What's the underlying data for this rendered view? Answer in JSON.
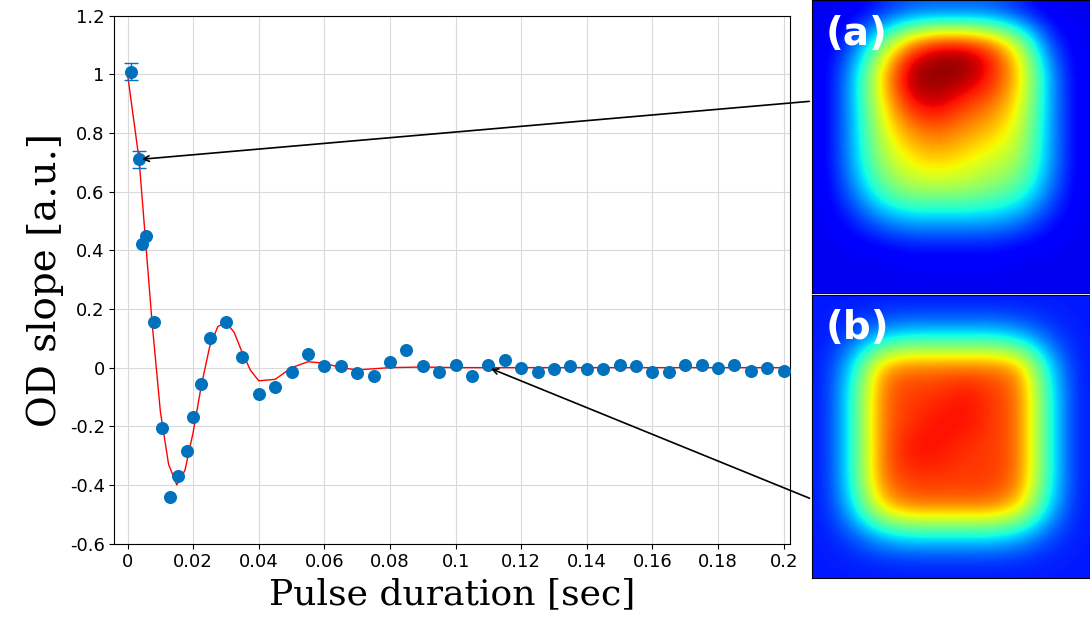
{
  "chart_data": {
    "type": "scatter",
    "x_label": "Pulse duration [sec]",
    "y_label": "OD slope [a.u.]",
    "xlim": [
      -0.004,
      0.202
    ],
    "ylim": [
      -0.6,
      1.2
    ],
    "xticks": [
      0,
      0.02,
      0.04,
      0.06,
      0.08,
      0.1,
      0.12,
      0.14,
      0.16,
      0.18,
      0.2
    ],
    "yticks": [
      -0.6,
      -0.4,
      -0.2,
      0,
      0.2,
      0.4,
      0.6,
      0.8,
      1,
      1.2
    ],
    "grid": true,
    "series": [
      {
        "type": "scatter",
        "color": "#0072bd",
        "marker": "o",
        "x": [
          0.001,
          0.0035,
          0.0045,
          0.0055,
          0.008,
          0.0105,
          0.013,
          0.0155,
          0.018,
          0.02,
          0.0225,
          0.025,
          0.03,
          0.035,
          0.04,
          0.045,
          0.05,
          0.055,
          0.06,
          0.065,
          0.07,
          0.075,
          0.08,
          0.085,
          0.09,
          0.095,
          0.1,
          0.105,
          0.11,
          0.115,
          0.12,
          0.125,
          0.13,
          0.135,
          0.14,
          0.145,
          0.15,
          0.155,
          0.16,
          0.165,
          0.17,
          0.175,
          0.18,
          0.185,
          0.19,
          0.195,
          0.2
        ],
        "values": [
          1.01,
          0.71,
          0.42,
          0.45,
          0.155,
          -0.205,
          -0.44,
          -0.37,
          -0.285,
          -0.17,
          -0.055,
          0.1,
          0.155,
          0.035,
          -0.09,
          -0.065,
          -0.015,
          0.045,
          0.005,
          0.005,
          -0.02,
          -0.03,
          0.02,
          0.06,
          0.005,
          -0.015,
          0.01,
          -0.03,
          0.01,
          0.025,
          0.0,
          -0.015,
          -0.005,
          0.005,
          -0.005,
          -0.005,
          0.01,
          0.005,
          -0.015,
          -0.015,
          0.01,
          0.01,
          0.0,
          0.01,
          -0.01,
          0.0,
          -0.01
        ],
        "errors": [
          0.03,
          0.03,
          null,
          null,
          null,
          null,
          null,
          null,
          null,
          null,
          null,
          null,
          null,
          null,
          null,
          null,
          null,
          null,
          null,
          null,
          null,
          null,
          null,
          null,
          null,
          null,
          null,
          null,
          null,
          null,
          null,
          null,
          null,
          null,
          null,
          null,
          null,
          null,
          null,
          null,
          null,
          null,
          null,
          null,
          null,
          null,
          null
        ]
      },
      {
        "type": "line",
        "color": "#ff0000",
        "line_style": "solid",
        "x": [
          0,
          0.0035,
          0.005,
          0.0075,
          0.01,
          0.0125,
          0.015,
          0.0175,
          0.02,
          0.0225,
          0.025,
          0.0275,
          0.03,
          0.0325,
          0.035,
          0.0375,
          0.04,
          0.045,
          0.05,
          0.055,
          0.06,
          0.065,
          0.07,
          0.08,
          0.09,
          0.1,
          0.2
        ],
        "values": [
          1.0,
          0.71,
          0.5,
          0.15,
          -0.15,
          -0.33,
          -0.4,
          -0.35,
          -0.22,
          -0.06,
          0.07,
          0.14,
          0.155,
          0.12,
          0.05,
          -0.01,
          -0.045,
          -0.04,
          0.0,
          0.02,
          0.015,
          0.0,
          -0.008,
          0.0,
          0.002,
          0.0,
          0.0
        ]
      }
    ],
    "insets": [
      {
        "label": "(a)",
        "points_to": [
          0.0035,
          0.71
        ],
        "range": [
          0,
          1
        ],
        "cells": [
          [
            0.1,
            0.1,
            0.15,
            0.2,
            0.2,
            0.2,
            0.2,
            0.15,
            0.1,
            0.1
          ],
          [
            0.1,
            0.2,
            0.5,
            0.8,
            0.95,
            0.95,
            0.85,
            0.6,
            0.2,
            0.1
          ],
          [
            0.1,
            0.3,
            0.7,
            1.0,
            1.0,
            1.0,
            0.9,
            0.7,
            0.3,
            0.1
          ],
          [
            0.1,
            0.3,
            0.65,
            0.9,
            0.95,
            0.85,
            0.8,
            0.65,
            0.3,
            0.1
          ],
          [
            0.1,
            0.3,
            0.6,
            0.75,
            0.8,
            0.75,
            0.7,
            0.6,
            0.3,
            0.1
          ],
          [
            0.1,
            0.3,
            0.55,
            0.65,
            0.7,
            0.65,
            0.6,
            0.55,
            0.3,
            0.1
          ],
          [
            0.1,
            0.25,
            0.45,
            0.55,
            0.55,
            0.55,
            0.5,
            0.45,
            0.25,
            0.1
          ],
          [
            0.1,
            0.15,
            0.25,
            0.3,
            0.3,
            0.3,
            0.3,
            0.25,
            0.15,
            0.1
          ],
          [
            0.1,
            0.1,
            0.1,
            0.12,
            0.12,
            0.12,
            0.12,
            0.1,
            0.1,
            0.1
          ],
          [
            0.1,
            0.1,
            0.1,
            0.1,
            0.1,
            0.1,
            0.1,
            0.1,
            0.1,
            0.1
          ]
        ]
      },
      {
        "label": "(b)",
        "points_to": [
          0.11,
          0.0
        ],
        "range": [
          0,
          1
        ],
        "cells": [
          [
            0.15,
            0.15,
            0.15,
            0.15,
            0.15,
            0.15,
            0.15,
            0.15,
            0.15,
            0.15
          ],
          [
            0.15,
            0.2,
            0.3,
            0.35,
            0.35,
            0.35,
            0.35,
            0.3,
            0.2,
            0.15
          ],
          [
            0.15,
            0.35,
            0.75,
            0.8,
            0.8,
            0.8,
            0.8,
            0.75,
            0.35,
            0.15
          ],
          [
            0.15,
            0.4,
            0.8,
            0.85,
            0.85,
            0.9,
            0.85,
            0.8,
            0.4,
            0.15
          ],
          [
            0.15,
            0.4,
            0.8,
            0.85,
            0.9,
            0.9,
            0.85,
            0.8,
            0.4,
            0.15
          ],
          [
            0.15,
            0.4,
            0.8,
            0.9,
            0.9,
            0.85,
            0.85,
            0.8,
            0.4,
            0.15
          ],
          [
            0.15,
            0.4,
            0.8,
            0.85,
            0.85,
            0.85,
            0.85,
            0.8,
            0.4,
            0.15
          ],
          [
            0.15,
            0.35,
            0.7,
            0.8,
            0.8,
            0.8,
            0.8,
            0.7,
            0.35,
            0.15
          ],
          [
            0.15,
            0.2,
            0.3,
            0.35,
            0.35,
            0.35,
            0.35,
            0.3,
            0.2,
            0.15
          ],
          [
            0.15,
            0.15,
            0.15,
            0.15,
            0.15,
            0.15,
            0.15,
            0.15,
            0.15,
            0.15
          ]
        ]
      }
    ]
  }
}
